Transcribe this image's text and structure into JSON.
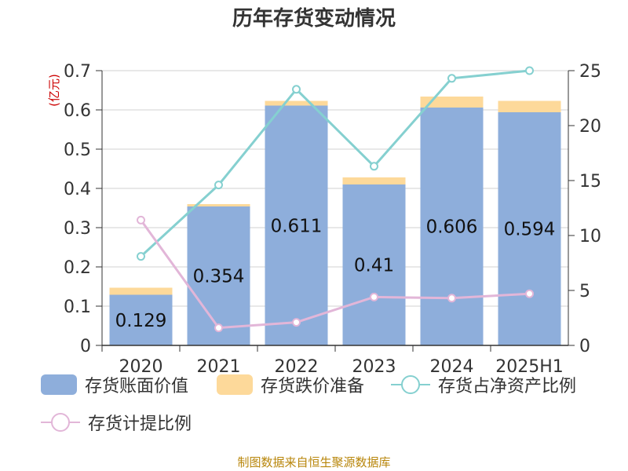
{
  "chart_data": {
    "type": "bar+line",
    "title": "历年存货变动情况",
    "left_axis_unit": "(亿元)",
    "categories": [
      "2020",
      "2021",
      "2022",
      "2023",
      "2024",
      "2025H1"
    ],
    "left_ylim": [
      0,
      0.7
    ],
    "left_ticks": [
      "0",
      "0.1",
      "0.2",
      "0.3",
      "0.4",
      "0.5",
      "0.6",
      "0.7"
    ],
    "right_ylim": [
      0,
      25
    ],
    "right_ticks": [
      "0",
      "5",
      "10",
      "15",
      "20",
      "25"
    ],
    "series": [
      {
        "name": "存货账面价值",
        "kind": "bar",
        "axis": "left",
        "color": "#8eaedb",
        "values": [
          0.129,
          0.354,
          0.611,
          0.41,
          0.606,
          0.594
        ],
        "labels": [
          "0.129",
          "0.354",
          "0.611",
          "0.41",
          "0.606",
          "0.594"
        ]
      },
      {
        "name": "存货跌价准备",
        "kind": "bar-stacked",
        "axis": "left",
        "color": "#fdd99a",
        "values": [
          0.018,
          0.006,
          0.012,
          0.018,
          0.028,
          0.029
        ]
      },
      {
        "name": "存货占净资产比例",
        "kind": "line",
        "axis": "right",
        "color": "#85d0d0",
        "values": [
          8.1,
          14.6,
          23.3,
          16.3,
          24.3,
          25.0
        ]
      },
      {
        "name": "存货计提比例",
        "kind": "line",
        "axis": "right",
        "color": "#e2b6d8",
        "values": [
          11.4,
          1.6,
          2.1,
          4.4,
          4.3,
          4.7
        ]
      }
    ],
    "grid": true
  },
  "legend": {
    "bar1": "存货账面价值",
    "bar2": "存货跌价准备",
    "line1": "存货占净资产比例",
    "line2": "存货计提比例"
  },
  "footer": "制图数据来自恒生聚源数据库"
}
